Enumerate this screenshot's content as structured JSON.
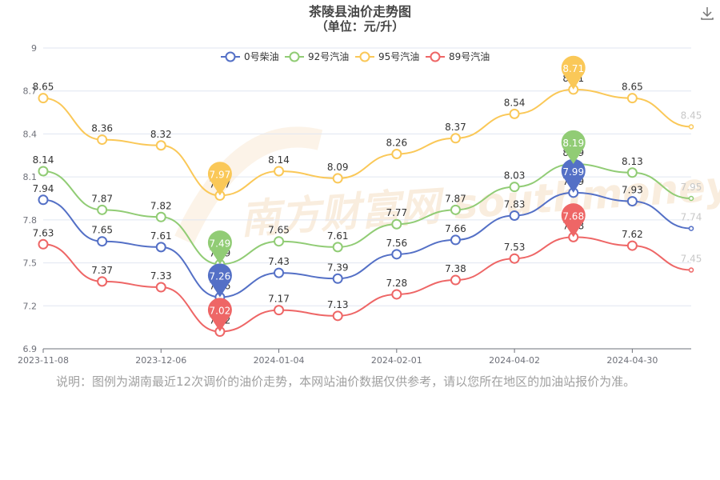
{
  "chart_data": {
    "type": "line",
    "title": "茶陵县油价走势图",
    "subtitle": "（单位：元/升）",
    "x_tick_labels": [
      "2023-11-08",
      "2023-12-06",
      "2024-01-04",
      "2024-02-01",
      "2024-04-02",
      "2024-04-30"
    ],
    "ylim": [
      6.9,
      9
    ],
    "y_ticks": [
      "6.9",
      "7.2",
      "7.5",
      "7.8",
      "8.1",
      "8.4",
      "8.7",
      "9"
    ],
    "legend_position": "top-center",
    "grid": true,
    "series": [
      {
        "name": "0号柴油",
        "color": "#5470c6",
        "values": [
          7.94,
          7.65,
          7.61,
          7.26,
          7.43,
          7.39,
          7.56,
          7.66,
          7.83,
          7.99,
          7.93,
          7.74
        ],
        "marker": {
          "index": 3,
          "value": "7.26"
        },
        "marker_max": {
          "index": 9,
          "value": "7.99"
        }
      },
      {
        "name": "92号汽油",
        "color": "#91cc75",
        "values": [
          8.14,
          7.87,
          7.82,
          7.49,
          7.65,
          7.61,
          7.77,
          7.87,
          8.03,
          8.19,
          8.13,
          7.95
        ],
        "marker": {
          "index": 3,
          "value": "7.49"
        },
        "marker_max": {
          "index": 9,
          "value": "8.19"
        }
      },
      {
        "name": "95号汽油",
        "color": "#fac858",
        "values": [
          8.65,
          8.36,
          8.32,
          7.97,
          8.14,
          8.09,
          8.26,
          8.37,
          8.54,
          8.71,
          8.65,
          8.45
        ],
        "marker": {
          "index": 3,
          "value": "7.97"
        },
        "marker_max": {
          "index": 9,
          "value": "8.71"
        }
      },
      {
        "name": "89号汽油",
        "color": "#ee6666",
        "values": [
          7.63,
          7.37,
          7.33,
          7.02,
          7.17,
          7.13,
          7.28,
          7.38,
          7.53,
          7.68,
          7.62,
          7.45
        ],
        "marker": {
          "index": 3,
          "value": "7.02"
        },
        "marker_max": {
          "index": 9,
          "value": "7.68"
        }
      }
    ]
  },
  "watermark": "南方财富网 southmoney.com",
  "note": "说明：图例为湖南最近12次调价的油价走势，本网站油价数据仅供参考，请以您所在地区的加油站报价为准。",
  "download_icon": "download-icon"
}
